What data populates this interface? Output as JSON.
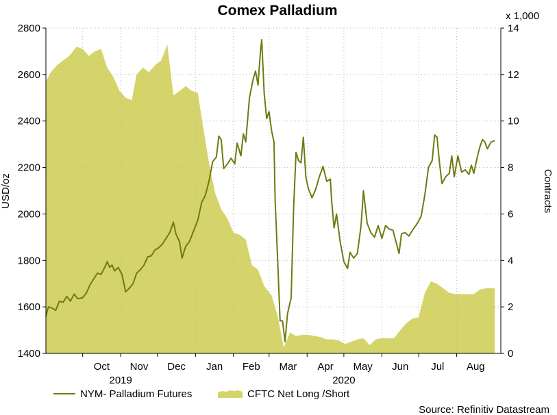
{
  "chart_data": {
    "type": "line",
    "title": "Comex Palladium",
    "source": "Source: Refinitiv Datastream",
    "left_axis": {
      "label": "USD/oz",
      "min": 1400,
      "max": 2800,
      "ticks": [
        "1400",
        "1600",
        "1800",
        "2000",
        "2200",
        "2400",
        "2600",
        "2800"
      ]
    },
    "right_axis": {
      "label": "Contracts",
      "multiplier": "x 1,000",
      "min": 0,
      "max": 14,
      "ticks": [
        "0",
        "2",
        "4",
        "6",
        "8",
        "10",
        "12",
        "14"
      ]
    },
    "x_axis": {
      "start": "2019-09-01",
      "end": "2020-09-06",
      "months": [
        {
          "label": "Oct",
          "date": "2019-10-01"
        },
        {
          "label": "Nov",
          "date": "2019-11-01"
        },
        {
          "label": "Dec",
          "date": "2019-12-01"
        },
        {
          "label": "Jan",
          "date": "2020-01-01"
        },
        {
          "label": "Feb",
          "date": "2020-02-01"
        },
        {
          "label": "Mar",
          "date": "2020-03-01"
        },
        {
          "label": "Apr",
          "date": "2020-04-01"
        },
        {
          "label": "May",
          "date": "2020-05-01"
        },
        {
          "label": "Jun",
          "date": "2020-06-01"
        },
        {
          "label": "Jul",
          "date": "2020-07-01"
        },
        {
          "label": "Aug",
          "date": "2020-08-01"
        }
      ],
      "years": [
        {
          "label": "2019",
          "date": "2019-11-01"
        },
        {
          "label": "2020",
          "date": "2020-05-01"
        }
      ]
    },
    "grid": true,
    "legend_position": "bottom-left",
    "series": [
      {
        "name": "NYM- Palladium Futures",
        "type": "line",
        "axis": "left",
        "color": "#6f7a0f",
        "points": [
          [
            "2019-09-01",
            1560
          ],
          [
            "2019-09-03",
            1600
          ],
          [
            "2019-09-06",
            1595
          ],
          [
            "2019-09-09",
            1585
          ],
          [
            "2019-09-12",
            1625
          ],
          [
            "2019-09-15",
            1620
          ],
          [
            "2019-09-18",
            1645
          ],
          [
            "2019-09-21",
            1625
          ],
          [
            "2019-09-24",
            1655
          ],
          [
            "2019-09-27",
            1635
          ],
          [
            "2019-10-01",
            1640
          ],
          [
            "2019-10-04",
            1660
          ],
          [
            "2019-10-07",
            1695
          ],
          [
            "2019-10-10",
            1720
          ],
          [
            "2019-10-13",
            1745
          ],
          [
            "2019-10-16",
            1740
          ],
          [
            "2019-10-19",
            1770
          ],
          [
            "2019-10-21",
            1795
          ],
          [
            "2019-10-23",
            1770
          ],
          [
            "2019-10-25",
            1780
          ],
          [
            "2019-10-27",
            1755
          ],
          [
            "2019-10-30",
            1770
          ],
          [
            "2019-11-02",
            1740
          ],
          [
            "2019-11-05",
            1665
          ],
          [
            "2019-11-08",
            1680
          ],
          [
            "2019-11-11",
            1700
          ],
          [
            "2019-11-14",
            1745
          ],
          [
            "2019-11-17",
            1760
          ],
          [
            "2019-11-20",
            1780
          ],
          [
            "2019-11-23",
            1815
          ],
          [
            "2019-11-26",
            1820
          ],
          [
            "2019-11-29",
            1845
          ],
          [
            "2019-12-02",
            1855
          ],
          [
            "2019-12-05",
            1870
          ],
          [
            "2019-12-08",
            1895
          ],
          [
            "2019-12-11",
            1920
          ],
          [
            "2019-12-14",
            1965
          ],
          [
            "2019-12-16",
            1915
          ],
          [
            "2019-12-19",
            1880
          ],
          [
            "2019-12-21",
            1810
          ],
          [
            "2019-12-24",
            1860
          ],
          [
            "2019-12-27",
            1880
          ],
          [
            "2019-12-31",
            1935
          ],
          [
            "2020-01-03",
            1975
          ],
          [
            "2020-01-06",
            2050
          ],
          [
            "2020-01-09",
            2080
          ],
          [
            "2020-01-12",
            2140
          ],
          [
            "2020-01-15",
            2225
          ],
          [
            "2020-01-18",
            2245
          ],
          [
            "2020-01-20",
            2335
          ],
          [
            "2020-01-22",
            2320
          ],
          [
            "2020-01-24",
            2195
          ],
          [
            "2020-01-27",
            2215
          ],
          [
            "2020-01-30",
            2240
          ],
          [
            "2020-02-02",
            2215
          ],
          [
            "2020-02-04",
            2305
          ],
          [
            "2020-02-07",
            2250
          ],
          [
            "2020-02-09",
            2345
          ],
          [
            "2020-02-11",
            2310
          ],
          [
            "2020-02-14",
            2500
          ],
          [
            "2020-02-17",
            2580
          ],
          [
            "2020-02-19",
            2615
          ],
          [
            "2020-02-21",
            2555
          ],
          [
            "2020-02-23",
            2700
          ],
          [
            "2020-02-24",
            2750
          ],
          [
            "2020-02-26",
            2520
          ],
          [
            "2020-02-28",
            2410
          ],
          [
            "2020-03-01",
            2440
          ],
          [
            "2020-03-03",
            2360
          ],
          [
            "2020-03-05",
            2310
          ],
          [
            "2020-03-06",
            2050
          ],
          [
            "2020-03-08",
            1800
          ],
          [
            "2020-03-10",
            1540
          ],
          [
            "2020-03-12",
            1540
          ],
          [
            "2020-03-14",
            1450
          ],
          [
            "2020-03-16",
            1570
          ],
          [
            "2020-03-19",
            1640
          ],
          [
            "2020-03-21",
            2020
          ],
          [
            "2020-03-23",
            2265
          ],
          [
            "2020-03-25",
            2230
          ],
          [
            "2020-03-27",
            2220
          ],
          [
            "2020-03-29",
            2330
          ],
          [
            "2020-03-31",
            2160
          ],
          [
            "2020-04-02",
            2110
          ],
          [
            "2020-04-05",
            2070
          ],
          [
            "2020-04-08",
            2105
          ],
          [
            "2020-04-11",
            2160
          ],
          [
            "2020-04-14",
            2205
          ],
          [
            "2020-04-17",
            2140
          ],
          [
            "2020-04-20",
            2150
          ],
          [
            "2020-04-21",
            2060
          ],
          [
            "2020-04-23",
            1940
          ],
          [
            "2020-04-25",
            2000
          ],
          [
            "2020-04-28",
            1880
          ],
          [
            "2020-05-01",
            1795
          ],
          [
            "2020-05-04",
            1765
          ],
          [
            "2020-05-06",
            1835
          ],
          [
            "2020-05-09",
            1810
          ],
          [
            "2020-05-12",
            1830
          ],
          [
            "2020-05-15",
            1950
          ],
          [
            "2020-05-17",
            2100
          ],
          [
            "2020-05-20",
            1960
          ],
          [
            "2020-05-23",
            1920
          ],
          [
            "2020-05-26",
            1900
          ],
          [
            "2020-05-29",
            1950
          ],
          [
            "2020-06-01",
            1895
          ],
          [
            "2020-06-04",
            1950
          ],
          [
            "2020-06-07",
            1935
          ],
          [
            "2020-06-10",
            1930
          ],
          [
            "2020-06-13",
            1870
          ],
          [
            "2020-06-15",
            1830
          ],
          [
            "2020-06-17",
            1915
          ],
          [
            "2020-06-20",
            1920
          ],
          [
            "2020-06-23",
            1905
          ],
          [
            "2020-06-26",
            1930
          ],
          [
            "2020-06-30",
            1960
          ],
          [
            "2020-07-03",
            1990
          ],
          [
            "2020-07-06",
            2080
          ],
          [
            "2020-07-09",
            2200
          ],
          [
            "2020-07-12",
            2230
          ],
          [
            "2020-07-14",
            2340
          ],
          [
            "2020-07-16",
            2330
          ],
          [
            "2020-07-18",
            2220
          ],
          [
            "2020-07-20",
            2130
          ],
          [
            "2020-07-23",
            2160
          ],
          [
            "2020-07-26",
            2175
          ],
          [
            "2020-07-28",
            2250
          ],
          [
            "2020-07-30",
            2160
          ],
          [
            "2020-08-02",
            2250
          ],
          [
            "2020-08-05",
            2180
          ],
          [
            "2020-08-08",
            2190
          ],
          [
            "2020-08-11",
            2170
          ],
          [
            "2020-08-13",
            2210
          ],
          [
            "2020-08-15",
            2175
          ],
          [
            "2020-08-18",
            2250
          ],
          [
            "2020-08-20",
            2290
          ],
          [
            "2020-08-22",
            2320
          ],
          [
            "2020-08-24",
            2310
          ],
          [
            "2020-08-26",
            2280
          ],
          [
            "2020-08-29",
            2310
          ],
          [
            "2020-09-01",
            2315
          ]
        ]
      },
      {
        "name": "CFTC Net Long /Short",
        "type": "area",
        "axis": "right",
        "color": "#d4d46a",
        "points": [
          [
            "2019-09-01",
            11.7
          ],
          [
            "2019-09-05",
            12.1
          ],
          [
            "2019-09-10",
            12.4
          ],
          [
            "2019-09-15",
            12.6
          ],
          [
            "2019-09-20",
            12.8
          ],
          [
            "2019-09-26",
            13.2
          ],
          [
            "2019-10-01",
            13.1
          ],
          [
            "2019-10-06",
            12.8
          ],
          [
            "2019-10-11",
            13.0
          ],
          [
            "2019-10-16",
            13.1
          ],
          [
            "2019-10-21",
            12.3
          ],
          [
            "2019-10-26",
            11.9
          ],
          [
            "2019-10-31",
            11.3
          ],
          [
            "2019-11-05",
            11.0
          ],
          [
            "2019-11-10",
            10.9
          ],
          [
            "2019-11-14",
            12.0
          ],
          [
            "2019-11-19",
            12.3
          ],
          [
            "2019-11-24",
            12.1
          ],
          [
            "2019-11-29",
            12.4
          ],
          [
            "2019-12-04",
            12.6
          ],
          [
            "2019-12-09",
            13.3
          ],
          [
            "2019-12-14",
            11.1
          ],
          [
            "2019-12-19",
            11.3
          ],
          [
            "2019-12-24",
            11.5
          ],
          [
            "2019-12-29",
            11.3
          ],
          [
            "2020-01-03",
            11.2
          ],
          [
            "2020-01-07",
            9.8
          ],
          [
            "2020-01-12",
            8.2
          ],
          [
            "2020-01-17",
            6.9
          ],
          [
            "2020-01-22",
            6.2
          ],
          [
            "2020-01-27",
            5.8
          ],
          [
            "2020-02-01",
            5.2
          ],
          [
            "2020-02-06",
            5.1
          ],
          [
            "2020-02-11",
            4.9
          ],
          [
            "2020-02-16",
            3.8
          ],
          [
            "2020-02-21",
            3.6
          ],
          [
            "2020-02-26",
            2.9
          ],
          [
            "2020-03-03",
            2.5
          ],
          [
            "2020-03-08",
            1.6
          ],
          [
            "2020-03-13",
            0.25
          ],
          [
            "2020-03-18",
            0.9
          ],
          [
            "2020-03-23",
            0.75
          ],
          [
            "2020-03-28",
            0.8
          ],
          [
            "2020-04-02",
            0.8
          ],
          [
            "2020-04-07",
            0.75
          ],
          [
            "2020-04-12",
            0.7
          ],
          [
            "2020-04-17",
            0.6
          ],
          [
            "2020-04-22",
            0.6
          ],
          [
            "2020-04-27",
            0.55
          ],
          [
            "2020-05-02",
            0.4
          ],
          [
            "2020-05-07",
            0.5
          ],
          [
            "2020-05-12",
            0.6
          ],
          [
            "2020-05-17",
            0.65
          ],
          [
            "2020-05-22",
            0.35
          ],
          [
            "2020-05-27",
            0.6
          ],
          [
            "2020-06-01",
            0.65
          ],
          [
            "2020-06-06",
            0.65
          ],
          [
            "2020-06-11",
            0.65
          ],
          [
            "2020-06-16",
            1.0
          ],
          [
            "2020-06-21",
            1.3
          ],
          [
            "2020-06-26",
            1.5
          ],
          [
            "2020-07-01",
            1.55
          ],
          [
            "2020-07-06",
            2.6
          ],
          [
            "2020-07-11",
            3.1
          ],
          [
            "2020-07-16",
            3.0
          ],
          [
            "2020-07-21",
            2.8
          ],
          [
            "2020-07-26",
            2.6
          ],
          [
            "2020-07-31",
            2.55
          ],
          [
            "2020-08-05",
            2.55
          ],
          [
            "2020-08-10",
            2.55
          ],
          [
            "2020-08-15",
            2.55
          ],
          [
            "2020-08-20",
            2.75
          ],
          [
            "2020-08-25",
            2.8
          ],
          [
            "2020-09-01",
            2.8
          ]
        ]
      }
    ]
  }
}
